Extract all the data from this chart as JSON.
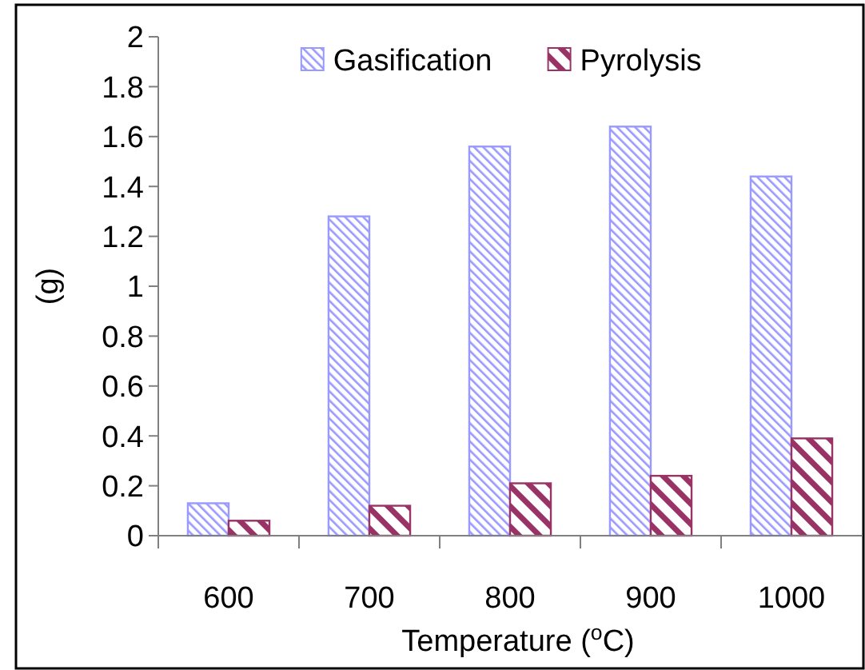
{
  "chart_data": {
    "type": "bar",
    "xlabel": "Temperature ($^{o}$C)",
    "ylabel": "(g)",
    "categories": [
      "600",
      "700",
      "800",
      "900",
      "1000"
    ],
    "series": [
      {
        "name": "Gasification",
        "color": "#9999ff",
        "values": [
          0.13,
          1.28,
          1.56,
          1.64,
          1.44
        ]
      },
      {
        "name": "Pyrolysis",
        "color": "#993366",
        "values": [
          0.06,
          0.12,
          0.21,
          0.24,
          0.39
        ]
      }
    ],
    "ylim": [
      0,
      2
    ],
    "yticks": [
      0,
      0.2,
      0.4,
      0.6,
      0.8,
      1,
      1.2,
      1.4,
      1.6,
      1.8,
      2
    ],
    "grid": false,
    "legend": "top"
  }
}
